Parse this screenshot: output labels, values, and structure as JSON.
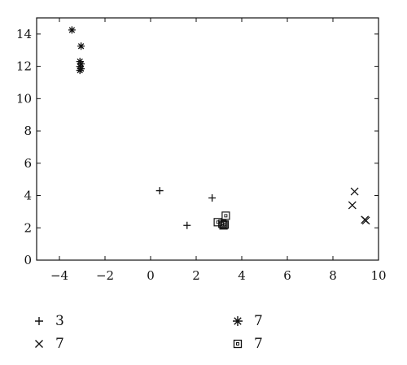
{
  "chart_data": {
    "type": "scatter",
    "title": "",
    "xlabel": "",
    "ylabel": "",
    "xlim": [
      -5,
      10
    ],
    "ylim": [
      0,
      15
    ],
    "xticks": [
      -4,
      -2,
      0,
      2,
      4,
      6,
      8,
      10
    ],
    "yticks": [
      0,
      2,
      4,
      6,
      8,
      10,
      12,
      14
    ],
    "grid": false,
    "legend_position": "bottom",
    "series": [
      {
        "name": "3",
        "marker": "plus",
        "points": [
          [
            0.4,
            4.3
          ],
          [
            1.6,
            2.15
          ],
          [
            2.7,
            3.85
          ]
        ]
      },
      {
        "name": "7",
        "marker": "asterisk",
        "points": [
          [
            -3.45,
            14.25
          ],
          [
            -3.05,
            13.25
          ],
          [
            -3.1,
            12.3
          ],
          [
            -3.05,
            12.15
          ],
          [
            -3.1,
            12.0
          ],
          [
            -3.05,
            11.85
          ],
          [
            -3.1,
            11.75
          ]
        ]
      },
      {
        "name": "7",
        "marker": "x",
        "points": [
          [
            8.95,
            4.25
          ],
          [
            8.85,
            3.4
          ],
          [
            9.4,
            2.5
          ],
          [
            9.45,
            2.45
          ]
        ]
      },
      {
        "name": "7",
        "marker": "square",
        "points": [
          [
            3.3,
            2.75
          ],
          [
            2.95,
            2.35
          ],
          [
            3.15,
            2.25
          ],
          [
            3.2,
            2.15
          ],
          [
            3.25,
            2.2
          ]
        ]
      }
    ]
  },
  "legend": [
    {
      "marker": "plus",
      "label": "3"
    },
    {
      "marker": "asterisk",
      "label": "7"
    },
    {
      "marker": "x",
      "label": "7"
    },
    {
      "marker": "square",
      "label": "7"
    }
  ]
}
